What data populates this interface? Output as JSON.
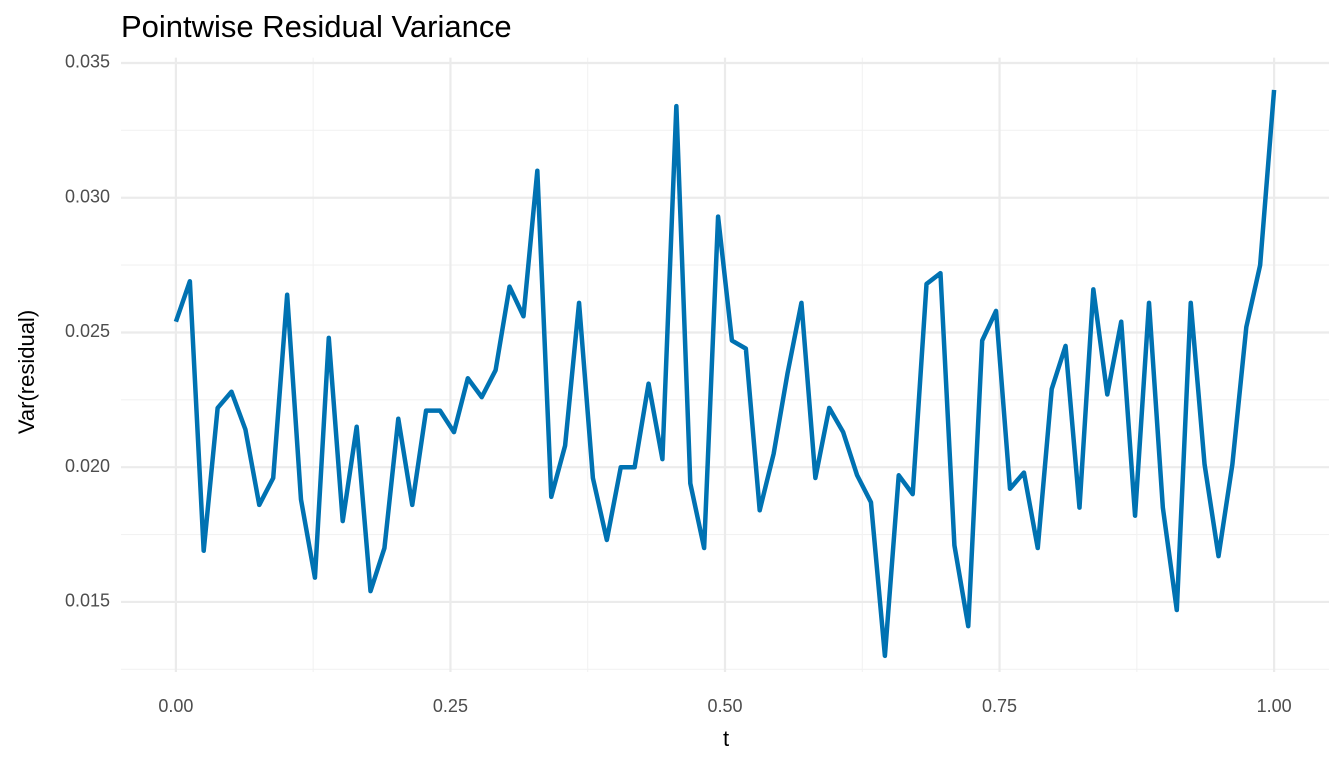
{
  "chart_data": {
    "type": "line",
    "title": "Pointwise Residual Variance",
    "x_label": "t",
    "y_label": "Var(residual)",
    "x": [
      0,
      0.0127,
      0.0253,
      0.038,
      0.0506,
      0.0633,
      0.0759,
      0.0886,
      0.1013,
      0.1139,
      0.1266,
      0.1392,
      0.1519,
      0.1646,
      0.1772,
      0.1899,
      0.2025,
      0.2152,
      0.2278,
      0.2405,
      0.2532,
      0.2658,
      0.2785,
      0.2911,
      0.3038,
      0.3165,
      0.3291,
      0.3418,
      0.3544,
      0.3671,
      0.3797,
      0.3924,
      0.4051,
      0.4177,
      0.4304,
      0.443,
      0.4557,
      0.4684,
      0.481,
      0.4937,
      0.5063,
      0.519,
      0.5316,
      0.5443,
      0.557,
      0.5696,
      0.5823,
      0.5949,
      0.6076,
      0.6203,
      0.6329,
      0.6456,
      0.6582,
      0.6709,
      0.6835,
      0.6962,
      0.7089,
      0.7215,
      0.7342,
      0.7468,
      0.7595,
      0.7722,
      0.7848,
      0.7975,
      0.8101,
      0.8228,
      0.8354,
      0.8481,
      0.8608,
      0.8734,
      0.8861,
      0.8987,
      0.9114,
      0.9241,
      0.9367,
      0.9494,
      0.962,
      0.9747,
      0.9873,
      1
    ],
    "series": [
      {
        "color": "#0072b2",
        "values": [
          0.0254,
          0.0269,
          0.0169,
          0.0222,
          0.0228,
          0.0214,
          0.0186,
          0.0196,
          0.0264,
          0.0188,
          0.0159,
          0.0248,
          0.018,
          0.0215,
          0.0154,
          0.017,
          0.0218,
          0.0186,
          0.0221,
          0.0221,
          0.0213,
          0.0233,
          0.0226,
          0.0236,
          0.0267,
          0.0256,
          0.031,
          0.0189,
          0.0208,
          0.0261,
          0.0196,
          0.0173,
          0.02,
          0.02,
          0.0231,
          0.0203,
          0.0334,
          0.0194,
          0.017,
          0.0293,
          0.0247,
          0.0244,
          0.0184,
          0.0205,
          0.0235,
          0.0261,
          0.0196,
          0.0222,
          0.0213,
          0.0197,
          0.0187,
          0.013,
          0.0197,
          0.019,
          0.0268,
          0.0272,
          0.0171,
          0.0141,
          0.0247,
          0.0258,
          0.0192,
          0.0198,
          0.017,
          0.0229,
          0.0245,
          0.0185,
          0.0266,
          0.0227,
          0.0254,
          0.0182,
          0.0261,
          0.0185,
          0.0147,
          0.0261,
          0.0201,
          0.0167,
          0.0201,
          0.0252,
          0.0275,
          0.034
        ]
      }
    ],
    "xlim": [
      -0.05,
      1.05
    ],
    "ylim": [
      0.0124,
      0.0352
    ],
    "xticks": [
      {
        "value": 0,
        "label": "0.00"
      },
      {
        "value": 0.25,
        "label": "0.25"
      },
      {
        "value": 0.5,
        "label": "0.50"
      },
      {
        "value": 0.75,
        "label": "0.75"
      },
      {
        "value": 1,
        "label": "1.00"
      }
    ],
    "yticks": [
      0.015,
      {
        "value": 0.02,
        "label": "0.020"
      },
      0.025,
      {
        "value": 0.03,
        "label": "0.030"
      },
      0.035
    ],
    "grid": true
  }
}
